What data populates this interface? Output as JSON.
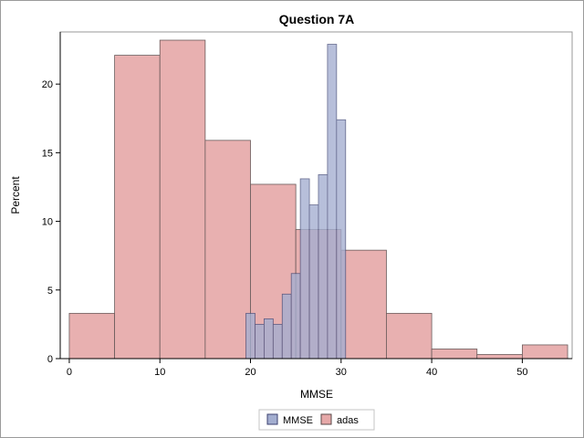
{
  "chart_data": {
    "type": "bar",
    "title": "Question 7A",
    "xlabel": "MMSE",
    "ylabel": "Percent",
    "xlim": [
      -1,
      55.5
    ],
    "ylim": [
      0,
      23.8
    ],
    "xticks": [
      0,
      10,
      20,
      30,
      40,
      50
    ],
    "yticks": [
      0,
      5,
      10,
      15,
      20
    ],
    "legend_position": "bottom",
    "series": [
      {
        "name": "adas",
        "color": "#e6a8a8",
        "stroke": "#5a4a4a",
        "bin_width": 5,
        "bins": [
          {
            "x0": 0,
            "y": 3.3
          },
          {
            "x0": 5,
            "y": 22.1
          },
          {
            "x0": 10,
            "y": 23.2
          },
          {
            "x0": 15,
            "y": 15.9
          },
          {
            "x0": 20,
            "y": 12.7
          },
          {
            "x0": 25,
            "y": 9.4
          },
          {
            "x0": 30,
            "y": 7.9
          },
          {
            "x0": 35,
            "y": 3.3
          },
          {
            "x0": 40,
            "y": 0.7
          },
          {
            "x0": 45,
            "y": 0.3
          },
          {
            "x0": 50,
            "y": 1.0
          }
        ]
      },
      {
        "name": "MMSE",
        "color": "#a3aed0",
        "stroke": "#3c4270",
        "bin_width": 1,
        "bins": [
          {
            "x0": 19.5,
            "y": 3.3
          },
          {
            "x0": 20.5,
            "y": 2.5
          },
          {
            "x0": 21.5,
            "y": 2.9
          },
          {
            "x0": 22.5,
            "y": 2.5
          },
          {
            "x0": 23.5,
            "y": 4.7
          },
          {
            "x0": 24.5,
            "y": 6.2
          },
          {
            "x0": 25.5,
            "y": 13.1
          },
          {
            "x0": 26.5,
            "y": 11.2
          },
          {
            "x0": 27.5,
            "y": 13.4
          },
          {
            "x0": 28.5,
            "y": 22.9
          },
          {
            "x0": 29.5,
            "y": 17.4
          }
        ]
      }
    ],
    "legend": [
      {
        "name": "MMSE",
        "color": "#a3aed0"
      },
      {
        "name": "adas",
        "color": "#e6a8a8"
      }
    ]
  }
}
